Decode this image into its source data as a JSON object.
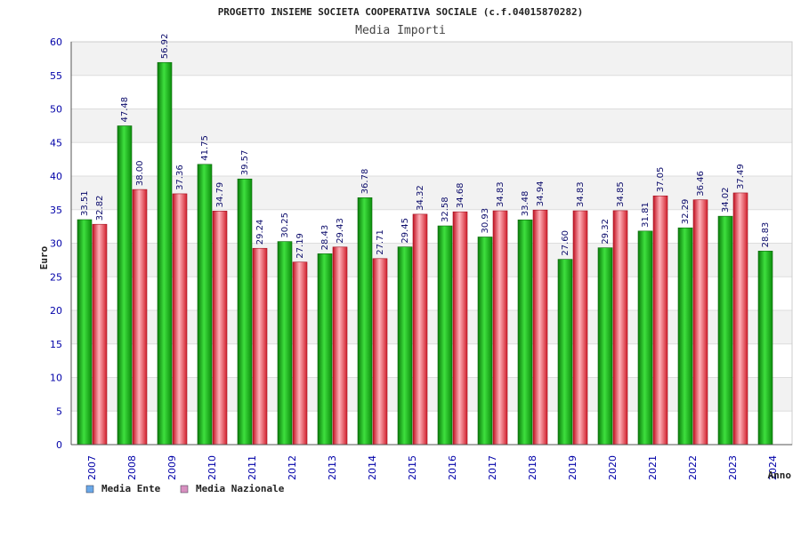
{
  "chart_data": {
    "type": "bar",
    "title": "PROGETTO INSIEME SOCIETA COOPERATIVA SOCIALE (c.f.04015870282)",
    "subtitle": "Media Importi",
    "xlabel": "Anno",
    "ylabel": "Euro",
    "ylim": [
      0,
      60
    ],
    "ytick_step": 5,
    "grid": true,
    "legend_position": "bottom-left",
    "categories": [
      "2007",
      "2008",
      "2009",
      "2010",
      "2011",
      "2012",
      "2013",
      "2014",
      "2015",
      "2016",
      "2017",
      "2018",
      "2019",
      "2020",
      "2021",
      "2022",
      "2023",
      "2024"
    ],
    "series": [
      {
        "name": "Media Ente",
        "color": "#16b816",
        "legend_color": "#6aa8e8",
        "values": [
          33.51,
          47.48,
          56.92,
          41.75,
          39.57,
          30.25,
          28.43,
          36.78,
          29.45,
          32.58,
          30.93,
          33.48,
          27.6,
          29.32,
          31.81,
          32.29,
          34.02,
          28.83
        ],
        "labels": [
          "33.51",
          "47.48",
          "56.92",
          "41.75",
          "39.57",
          "30.25",
          "28.43",
          "36.78",
          "29.45",
          "32.58",
          "30.93",
          "33.48",
          "27.60",
          "29.32",
          "31.81",
          "32.29",
          "34.02",
          "28.83"
        ]
      },
      {
        "name": "Media Nazionale",
        "color": "#e8343c",
        "legend_color": "#d890c0",
        "values": [
          32.82,
          38.0,
          37.36,
          34.79,
          29.24,
          27.19,
          29.43,
          27.71,
          34.32,
          34.68,
          34.83,
          34.94,
          34.83,
          34.85,
          37.05,
          36.46,
          37.49,
          null
        ],
        "labels": [
          "32.82",
          "38.00",
          "37.36",
          "34.79",
          "29.24",
          "27.19",
          "29.43",
          "27.71",
          "34.32",
          "34.68",
          "34.83",
          "34.94",
          "34.83",
          "34.85",
          "37.05",
          "36.46",
          "37.49",
          null
        ]
      }
    ]
  }
}
